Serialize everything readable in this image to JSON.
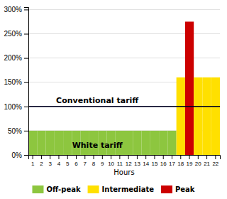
{
  "chart_data": {
    "type": "bar",
    "x_label": "Hours",
    "categories": [
      "1",
      "2",
      "3",
      "4",
      "5",
      "6",
      "7",
      "8",
      "9",
      "10",
      "11",
      "12",
      "13",
      "14",
      "15",
      "16",
      "17",
      "18",
      "19",
      "20",
      "21",
      "22"
    ],
    "values": [
      50,
      50,
      50,
      50,
      50,
      50,
      50,
      50,
      50,
      50,
      50,
      50,
      50,
      50,
      50,
      50,
      50,
      160,
      275,
      160,
      160,
      160
    ],
    "colors": [
      "#8DC63F",
      "#8DC63F",
      "#8DC63F",
      "#8DC63F",
      "#8DC63F",
      "#8DC63F",
      "#8DC63F",
      "#8DC63F",
      "#8DC63F",
      "#8DC63F",
      "#8DC63F",
      "#8DC63F",
      "#8DC63F",
      "#8DC63F",
      "#8DC63F",
      "#8DC63F",
      "#8DC63F",
      "#FFE000",
      "#CC0000",
      "#FFE000",
      "#FFE000",
      "#FFE000"
    ],
    "ylim": [
      0,
      305
    ],
    "yticks": [
      {
        "value": 0,
        "label": "0%"
      },
      {
        "value": 50,
        "label": "50%"
      },
      {
        "value": 100,
        "label": "100%"
      },
      {
        "value": 150,
        "label": "150%"
      },
      {
        "value": 200,
        "label": "200%"
      },
      {
        "value": 250,
        "label": "250%"
      },
      {
        "value": 300,
        "label": "300%"
      }
    ],
    "grid": true,
    "hline": {
      "y": 100,
      "label": "Conventional tariff",
      "color": "#000020"
    },
    "annotations": [
      "White tariff"
    ],
    "legend": "bottom",
    "legend_entries": [
      {
        "name": "Off-peak",
        "color": "#8DC63F"
      },
      {
        "name": "Intermediate",
        "color": "#FFE000"
      },
      {
        "name": "Peak",
        "color": "#CC0000"
      }
    ]
  }
}
